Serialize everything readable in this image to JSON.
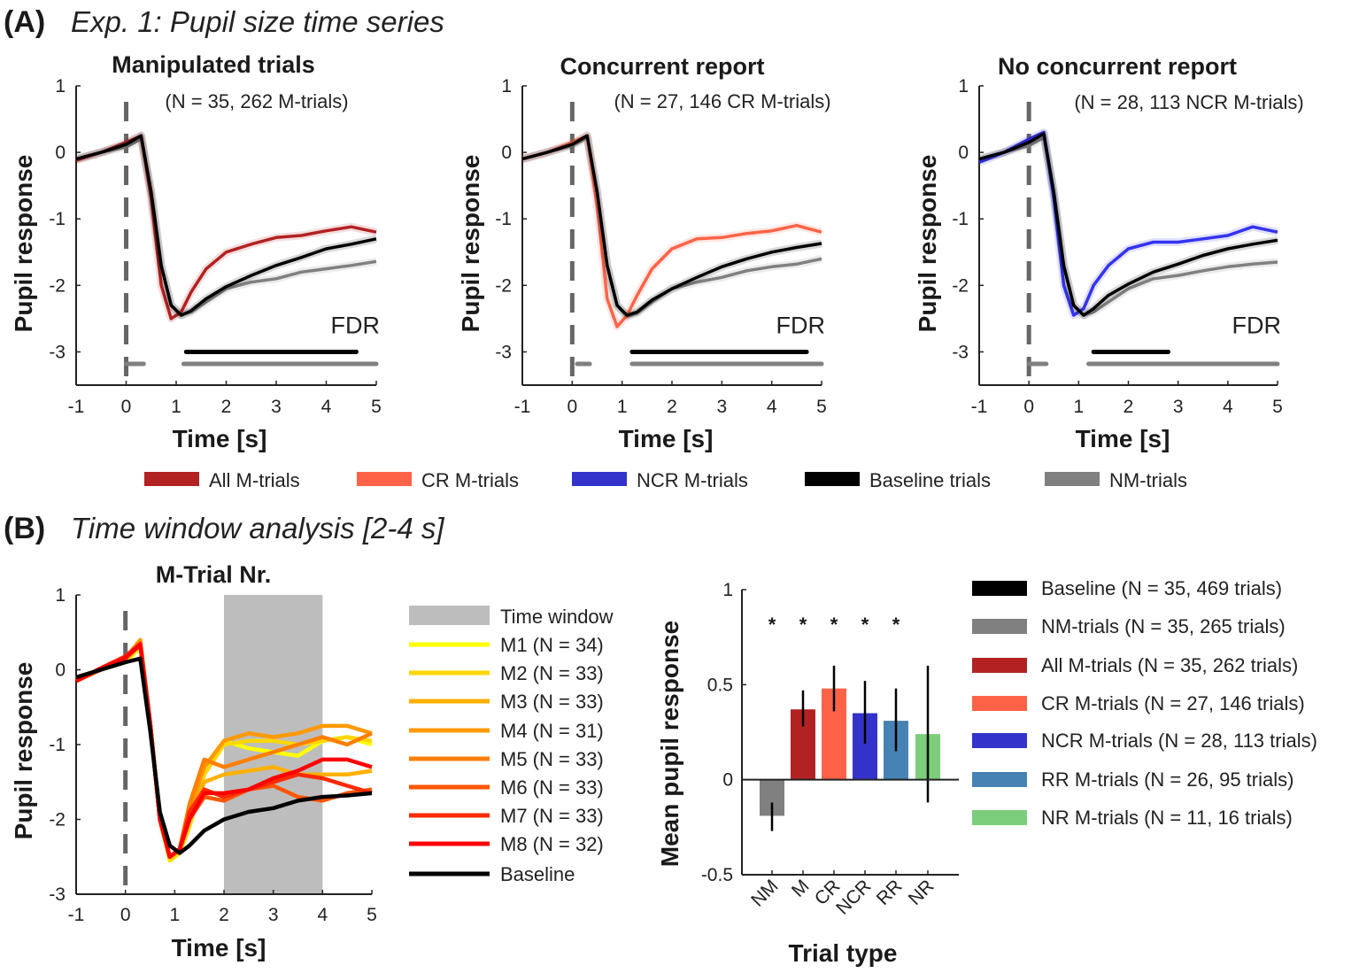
{
  "figure": {
    "panel_a_label": "(A)",
    "panel_a_title": "Exp. 1: Pupil size time series",
    "panel_b_label": "(B)",
    "panel_b_title": "Time window analysis [2-4 s]"
  },
  "legend_a": [
    {
      "label": "All M-trials",
      "color": "#b22222"
    },
    {
      "label": "CR M-trials",
      "color": "#ff6347"
    },
    {
      "label": "NCR M-trials",
      "color": "#3333cc"
    },
    {
      "label": "Baseline trials",
      "color": "#000000"
    },
    {
      "label": "NM-trials",
      "color": "#808080"
    }
  ],
  "chart_data": [
    {
      "type": "line",
      "title": "Manipulated trials",
      "subtitle": "(N = 35, 262 M-trials)",
      "xlabel": "Time [s]",
      "ylabel": "Pupil response",
      "xlim": [
        -1,
        5
      ],
      "ylim": [
        -3.5,
        1
      ],
      "xticks": [
        "-1",
        "0",
        "1",
        "2",
        "3",
        "4",
        "5"
      ],
      "yticks": [
        "1",
        "0",
        "-1",
        "-2",
        "-3"
      ],
      "annotation": "FDR",
      "vline_x": 0,
      "x": [
        -1,
        -0.5,
        0,
        0.3,
        0.5,
        0.7,
        0.9,
        1.1,
        1.3,
        1.6,
        2,
        2.5,
        3,
        3.5,
        4,
        4.5,
        5
      ],
      "series": [
        {
          "color": "#808080",
          "values": [
            -0.1,
            0.0,
            0.08,
            0.2,
            -0.6,
            -1.7,
            -2.3,
            -2.45,
            -2.4,
            -2.25,
            -2.05,
            -1.95,
            -1.9,
            -1.8,
            -1.75,
            -1.7,
            -1.64
          ]
        },
        {
          "color": "#b22222",
          "values": [
            -0.12,
            0.0,
            0.15,
            0.25,
            -0.7,
            -2.0,
            -2.5,
            -2.4,
            -2.1,
            -1.75,
            -1.5,
            -1.38,
            -1.28,
            -1.25,
            -1.18,
            -1.12,
            -1.2
          ]
        },
        {
          "color": "#000000",
          "values": [
            -0.1,
            0.0,
            0.12,
            0.25,
            -0.6,
            -1.7,
            -2.3,
            -2.45,
            -2.38,
            -2.2,
            -2.02,
            -1.85,
            -1.7,
            -1.58,
            -1.45,
            -1.38,
            -1.3
          ]
        }
      ],
      "significance": [
        {
          "color": "#000000",
          "y": -3.0,
          "from": 1.2,
          "to": 4.6
        },
        {
          "color": "#808080",
          "y": -3.18,
          "from": 0.0,
          "to": 0.35
        },
        {
          "color": "#808080",
          "y": -3.18,
          "from": 1.15,
          "to": 5.0
        }
      ]
    },
    {
      "type": "line",
      "title": "Concurrent report",
      "subtitle": "(N = 27, 146 CR M-trials)",
      "xlabel": "Time [s]",
      "ylabel": "Pupil response",
      "xlim": [
        -1,
        5
      ],
      "ylim": [
        -3.5,
        1
      ],
      "xticks": [
        "-1",
        "0",
        "1",
        "2",
        "3",
        "4",
        "5"
      ],
      "yticks": [
        "1",
        "0",
        "-1",
        "-2",
        "-3"
      ],
      "annotation": "FDR",
      "vline_x": 0,
      "x": [
        -1,
        -0.5,
        0,
        0.3,
        0.5,
        0.7,
        0.9,
        1.1,
        1.3,
        1.6,
        2,
        2.5,
        3,
        3.5,
        4,
        4.5,
        5
      ],
      "series": [
        {
          "color": "#808080",
          "values": [
            -0.1,
            0,
            0.1,
            0.22,
            -0.6,
            -1.7,
            -2.3,
            -2.47,
            -2.42,
            -2.25,
            -2.05,
            -1.95,
            -1.88,
            -1.78,
            -1.72,
            -1.68,
            -1.6
          ]
        },
        {
          "color": "#ff6347",
          "values": [
            -0.1,
            0.0,
            0.15,
            0.25,
            -0.8,
            -2.2,
            -2.62,
            -2.45,
            -2.15,
            -1.75,
            -1.45,
            -1.3,
            -1.28,
            -1.22,
            -1.18,
            -1.1,
            -1.2
          ]
        },
        {
          "color": "#000000",
          "values": [
            -0.1,
            0.0,
            0.12,
            0.25,
            -0.6,
            -1.7,
            -2.3,
            -2.45,
            -2.4,
            -2.22,
            -2.05,
            -1.88,
            -1.72,
            -1.6,
            -1.5,
            -1.43,
            -1.37
          ]
        }
      ],
      "significance": [
        {
          "color": "#000000",
          "y": -3.0,
          "from": 1.2,
          "to": 4.7
        },
        {
          "color": "#808080",
          "y": -3.18,
          "from": 0.1,
          "to": 0.35
        },
        {
          "color": "#808080",
          "y": -3.18,
          "from": 1.2,
          "to": 5.0
        }
      ]
    },
    {
      "type": "line",
      "title": "No concurrent report",
      "subtitle": "(N = 28, 113 NCR M-trials)",
      "xlabel": "Time [s]",
      "ylabel": "Pupil response",
      "xlim": [
        -1,
        5
      ],
      "ylim": [
        -3.5,
        1
      ],
      "xticks": [
        "-1",
        "0",
        "1",
        "2",
        "3",
        "4",
        "5"
      ],
      "yticks": [
        "1",
        "0",
        "-1",
        "-2",
        "-3"
      ],
      "annotation": "FDR",
      "vline_x": 0,
      "x": [
        -1,
        -0.5,
        0,
        0.3,
        0.5,
        0.7,
        0.9,
        1.1,
        1.3,
        1.6,
        2,
        2.5,
        3,
        3.5,
        4,
        4.5,
        5
      ],
      "series": [
        {
          "color": "#808080",
          "values": [
            -0.1,
            0,
            0.1,
            0.22,
            -0.6,
            -1.7,
            -2.3,
            -2.45,
            -2.4,
            -2.25,
            -2.05,
            -1.9,
            -1.85,
            -1.78,
            -1.72,
            -1.68,
            -1.65
          ]
        },
        {
          "color": "#3333ee",
          "values": [
            -0.15,
            0,
            0.2,
            0.3,
            -0.7,
            -2.0,
            -2.45,
            -2.35,
            -2.0,
            -1.7,
            -1.45,
            -1.35,
            -1.35,
            -1.3,
            -1.25,
            -1.12,
            -1.2
          ]
        },
        {
          "color": "#000000",
          "values": [
            -0.1,
            0,
            0.15,
            0.28,
            -0.6,
            -1.7,
            -2.3,
            -2.45,
            -2.35,
            -2.15,
            -1.98,
            -1.8,
            -1.68,
            -1.55,
            -1.45,
            -1.38,
            -1.32
          ]
        }
      ],
      "significance": [
        {
          "color": "#000000",
          "y": -3.0,
          "from": 1.3,
          "to": 2.8
        },
        {
          "color": "#808080",
          "y": -3.18,
          "from": 0.0,
          "to": 0.35
        },
        {
          "color": "#808080",
          "y": -3.18,
          "from": 1.2,
          "to": 5.0
        }
      ]
    },
    {
      "type": "line",
      "title": "M-Trial Nr.",
      "xlabel": "Time [s]",
      "ylabel": "Pupil response",
      "xlim": [
        -1,
        5
      ],
      "ylim": [
        -3,
        1
      ],
      "xticks": [
        "-1",
        "0",
        "1",
        "2",
        "3",
        "4",
        "5"
      ],
      "yticks": [
        "1",
        "0",
        "-1",
        "-2",
        "-3"
      ],
      "vline_x": 0,
      "shaded_window": {
        "from": 2,
        "to": 4,
        "label": "Time window",
        "color": "#bdbdbd"
      },
      "x": [
        -1,
        -0.5,
        0,
        0.3,
        0.5,
        0.7,
        0.9,
        1.1,
        1.3,
        1.6,
        2,
        2.5,
        3,
        3.5,
        4,
        4.5,
        5
      ],
      "series": [
        {
          "name": "M1 (N = 34)",
          "color": "#ffff00",
          "values": [
            -0.1,
            0,
            0.1,
            0.3,
            -0.7,
            -2.0,
            -2.55,
            -2.45,
            -2.0,
            -1.3,
            -0.95,
            -1.05,
            -1.1,
            -1.15,
            -0.95,
            -0.9,
            -1.0
          ]
        },
        {
          "name": "M2 (N = 33)",
          "color": "#ffd700",
          "values": [
            -0.1,
            0,
            0.12,
            0.32,
            -0.7,
            -2.0,
            -2.55,
            -2.45,
            -2.1,
            -1.4,
            -1.0,
            -0.95,
            -0.95,
            -1.0,
            -0.95,
            -0.9,
            -0.95
          ]
        },
        {
          "name": "M3 (N = 33)",
          "color": "#ffb000",
          "values": [
            -0.12,
            0,
            0.14,
            0.34,
            -0.7,
            -2.0,
            -2.5,
            -2.4,
            -2.0,
            -1.5,
            -1.4,
            -1.35,
            -1.3,
            -1.4,
            -1.4,
            -1.4,
            -1.35
          ]
        },
        {
          "name": "M4 (N = 31)",
          "color": "#ff9900",
          "values": [
            -0.1,
            0,
            0.15,
            0.4,
            -0.7,
            -2.0,
            -2.5,
            -2.4,
            -1.9,
            -1.3,
            -0.95,
            -0.85,
            -0.9,
            -0.85,
            -0.75,
            -0.75,
            -0.85
          ]
        },
        {
          "name": "M5 (N = 33)",
          "color": "#ff7f00",
          "values": [
            -0.15,
            0,
            0.15,
            0.35,
            -0.7,
            -2.0,
            -2.5,
            -2.4,
            -1.8,
            -1.2,
            -1.3,
            -1.2,
            -1.1,
            -1.0,
            -0.9,
            -1.0,
            -0.85
          ]
        },
        {
          "name": "M6 (N = 33)",
          "color": "#ff5500",
          "values": [
            -0.15,
            0,
            0.18,
            0.35,
            -0.7,
            -2.0,
            -2.5,
            -2.4,
            -2.0,
            -1.7,
            -1.75,
            -1.6,
            -1.55,
            -1.7,
            -1.75,
            -1.65,
            -1.6
          ]
        },
        {
          "name": "M7 (N = 33)",
          "color": "#ff2a00",
          "values": [
            -0.15,
            0.02,
            0.18,
            0.35,
            -0.7,
            -2.0,
            -2.5,
            -2.4,
            -1.9,
            -1.6,
            -1.7,
            -1.6,
            -1.5,
            -1.4,
            -1.45,
            -1.55,
            -1.65
          ]
        },
        {
          "name": "M8 (N = 32)",
          "color": "#ff0000",
          "values": [
            -0.15,
            0.02,
            0.16,
            0.33,
            -0.7,
            -2.0,
            -2.5,
            -2.4,
            -2.0,
            -1.65,
            -1.65,
            -1.6,
            -1.45,
            -1.35,
            -1.2,
            -1.2,
            -1.3
          ]
        },
        {
          "name": "Baseline",
          "color": "#000000",
          "values": [
            -0.1,
            0.0,
            0.1,
            0.15,
            -0.8,
            -1.9,
            -2.35,
            -2.45,
            -2.35,
            -2.15,
            -2.0,
            -1.9,
            -1.85,
            -1.75,
            -1.7,
            -1.68,
            -1.65
          ]
        }
      ]
    },
    {
      "type": "bar",
      "xlabel": "Trial type",
      "ylabel": "Mean pupil response",
      "ylim": [
        -0.5,
        1
      ],
      "yticks": [
        "1",
        "0.5",
        "0",
        "-0.5"
      ],
      "categories": [
        "NM",
        "M",
        "CR",
        "NCR",
        "RR",
        "NR"
      ],
      "values": [
        -0.19,
        0.37,
        0.48,
        0.35,
        0.31,
        0.24
      ],
      "error": [
        [
          -0.27,
          -0.12
        ],
        [
          0.28,
          0.47
        ],
        [
          0.36,
          0.6
        ],
        [
          0.19,
          0.52
        ],
        [
          0.15,
          0.48
        ],
        [
          -0.12,
          0.6
        ]
      ],
      "significant": [
        "*",
        "*",
        "*",
        "*",
        "*",
        ""
      ],
      "colors": [
        "#808080",
        "#b22222",
        "#ff6347",
        "#3333cc",
        "#4682b4",
        "#7ccd7c"
      ],
      "legend": [
        {
          "label": "Baseline (N = 35, 469 trials)",
          "color": "#000000"
        },
        {
          "label": "NM-trials (N = 35, 265 trials)",
          "color": "#808080"
        },
        {
          "label": "All M-trials (N = 35, 262 trials)",
          "color": "#b22222"
        },
        {
          "label": "CR M-trials (N = 27, 146 trials)",
          "color": "#ff6347"
        },
        {
          "label": "NCR M-trials (N = 28, 113 trials)",
          "color": "#3333cc"
        },
        {
          "label": "RR M-trials (N = 26, 95 trials)",
          "color": "#4682b4"
        },
        {
          "label": "NR M-trials (N = 11, 16 trials)",
          "color": "#7ccd7c"
        }
      ]
    }
  ]
}
